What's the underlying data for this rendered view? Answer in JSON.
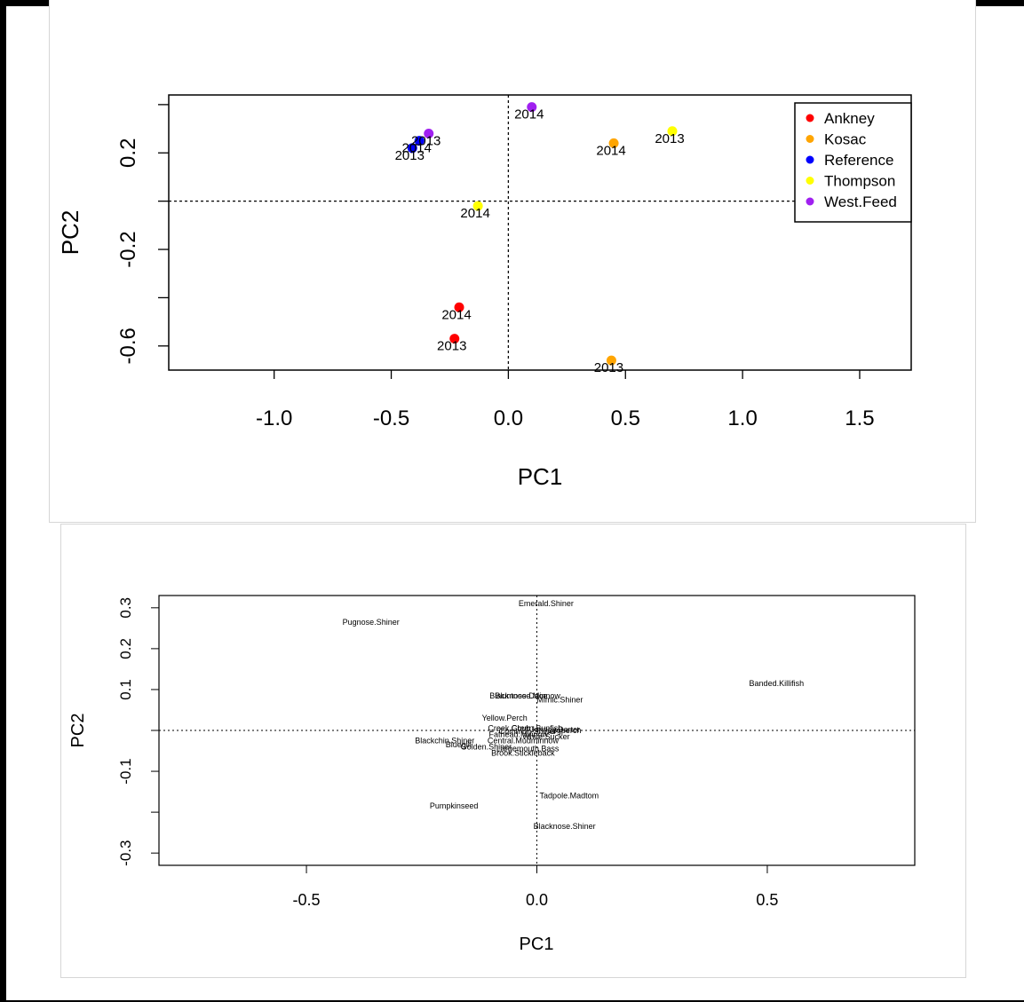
{
  "chart_data": [
    {
      "type": "scatter",
      "xlabel": "PC1",
      "ylabel": "PC2",
      "xlim": [
        -1.45,
        1.72
      ],
      "ylim": [
        -0.7,
        0.44
      ],
      "xticks": [
        "-1.0",
        "-0.5",
        "0.0",
        "0.5",
        "1.0",
        "1.5"
      ],
      "xtick_values": [
        -1.0,
        -0.5,
        0.0,
        0.5,
        1.0,
        1.5
      ],
      "yticks": [
        "-0.6",
        "-0.2",
        "0.2"
      ],
      "ytick_values": [
        -0.6,
        -0.2,
        0.2
      ],
      "ref_lines": {
        "x": 0,
        "y": 0
      },
      "legend": {
        "placement": "top-right",
        "entries": [
          {
            "name": "Ankney",
            "color": "#ff0000"
          },
          {
            "name": "Kosac",
            "color": "#ffa500"
          },
          {
            "name": "Reference",
            "color": "#0000ff"
          },
          {
            "name": "Thompson",
            "color": "#ffff00"
          },
          {
            "name": "West.Feed",
            "color": "#a020f0"
          }
        ]
      },
      "series": [
        {
          "name": "Ankney",
          "color": "#ff0000",
          "points": [
            {
              "x": -0.21,
              "y": -0.44,
              "label": "2014"
            },
            {
              "x": -0.23,
              "y": -0.57,
              "label": "2013"
            }
          ]
        },
        {
          "name": "Kosac",
          "color": "#ffa500",
          "points": [
            {
              "x": 0.45,
              "y": 0.24,
              "label": "2014"
            },
            {
              "x": 0.44,
              "y": -0.66,
              "label": "2013"
            }
          ]
        },
        {
          "name": "Reference",
          "color": "#0000ff",
          "points": [
            {
              "x": -0.41,
              "y": 0.22,
              "label": "2013"
            },
            {
              "x": -0.38,
              "y": 0.25,
              "label": "2014"
            }
          ]
        },
        {
          "name": "Thompson",
          "color": "#ffff00",
          "points": [
            {
              "x": 0.7,
              "y": 0.29,
              "label": "2013"
            },
            {
              "x": -0.13,
              "y": -0.02,
              "label": "2014"
            }
          ]
        },
        {
          "name": "West.Feed",
          "color": "#a020f0",
          "points": [
            {
              "x": 0.1,
              "y": 0.39,
              "label": "2014"
            },
            {
              "x": -0.34,
              "y": 0.28,
              "label": "2013"
            }
          ]
        }
      ]
    },
    {
      "type": "scatter",
      "xlabel": "PC1",
      "ylabel": "PC2",
      "xlim": [
        -0.82,
        0.82
      ],
      "ylim": [
        -0.33,
        0.33
      ],
      "xticks": [
        "-0.5",
        "0.0",
        "0.5"
      ],
      "xtick_values": [
        -0.5,
        0.0,
        0.5
      ],
      "yticks": [
        "-0.3",
        "-0.1",
        "0.1",
        "0.2",
        "0.3"
      ],
      "ytick_values": [
        -0.3,
        -0.1,
        0.1,
        0.2,
        0.3
      ],
      "all_ticks": [
        -0.3,
        -0.2,
        -0.1,
        0.0,
        0.1,
        0.2,
        0.3
      ],
      "ref_lines": {
        "x": 0,
        "y": 0
      },
      "labels": [
        {
          "text": "Emerald.Shiner",
          "x": 0.02,
          "y": 0.31
        },
        {
          "text": "Pugnose.Shiner",
          "x": -0.36,
          "y": 0.265
        },
        {
          "text": "Banded.Killifish",
          "x": 0.52,
          "y": 0.115
        },
        {
          "text": "Bluntnose.Minnow",
          "x": -0.02,
          "y": 0.085
        },
        {
          "text": "Blacknose.Dace",
          "x": -0.04,
          "y": 0.085
        },
        {
          "text": "Mimic.Shiner",
          "x": 0.05,
          "y": 0.075
        },
        {
          "text": "Yellow.Perch",
          "x": -0.07,
          "y": 0.03
        },
        {
          "text": "Creek.Chub",
          "x": -0.06,
          "y": 0.005
        },
        {
          "text": "Green.Sunfish",
          "x": 0.0,
          "y": 0.005
        },
        {
          "text": "Johnny.Darter",
          "x": 0.04,
          "y": 0.002
        },
        {
          "text": "Common.Shiner",
          "x": -0.02,
          "y": -0.002
        },
        {
          "text": "Logperch",
          "x": 0.06,
          "y": 0.0
        },
        {
          "text": "Fathead.Minnow",
          "x": -0.04,
          "y": -0.01
        },
        {
          "text": "White.Sucker",
          "x": 0.02,
          "y": -0.015
        },
        {
          "text": "Central.Mudminnow",
          "x": -0.03,
          "y": -0.025
        },
        {
          "text": "Blackchin.Shiner",
          "x": -0.2,
          "y": -0.025
        },
        {
          "text": "Bluegill",
          "x": -0.17,
          "y": -0.035
        },
        {
          "text": "Golden.Shiner",
          "x": -0.11,
          "y": -0.04
        },
        {
          "text": "Largemouth.Bass",
          "x": -0.02,
          "y": -0.045
        },
        {
          "text": "Brook.Stickleback",
          "x": -0.03,
          "y": -0.055
        },
        {
          "text": "Tadpole.Madtom",
          "x": 0.07,
          "y": -0.16
        },
        {
          "text": "Pumpkinseed",
          "x": -0.18,
          "y": -0.185
        },
        {
          "text": "Blacknose.Shiner",
          "x": 0.06,
          "y": -0.235
        }
      ]
    }
  ]
}
